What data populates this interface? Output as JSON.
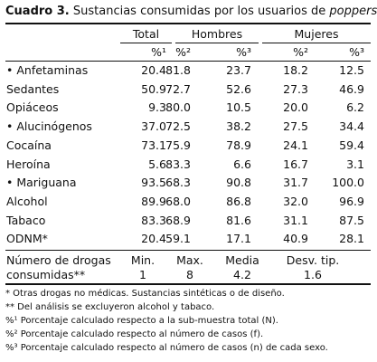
{
  "title": {
    "label": "Cuadro 3.",
    "text": "Sustancias consumidas por los usuarios de",
    "emphasis": "poppers"
  },
  "table": {
    "groups": [
      "Total",
      "Hombres",
      "Mujeres"
    ],
    "subheaders": [
      "%¹",
      "%²",
      "%³",
      "%²",
      "%³"
    ],
    "rows": [
      {
        "label": "• Anfetaminas",
        "values": [
          "20.4",
          "81.8",
          "23.7",
          "18.2",
          "12.5"
        ]
      },
      {
        "label": "Sedantes",
        "values": [
          "50.9",
          "72.7",
          "52.6",
          "27.3",
          "46.9"
        ]
      },
      {
        "label": "Opiáceos",
        "values": [
          "9.3",
          "80.0",
          "10.5",
          "20.0",
          "6.2"
        ]
      },
      {
        "label": "• Alucinógenos",
        "values": [
          "37.0",
          "72.5",
          "38.2",
          "27.5",
          "34.4"
        ]
      },
      {
        "label": "Cocaína",
        "values": [
          "73.1",
          "75.9",
          "78.9",
          "24.1",
          "59.4"
        ]
      },
      {
        "label": "Heroína",
        "values": [
          "5.6",
          "83.3",
          "6.6",
          "16.7",
          "3.1"
        ]
      },
      {
        "label": "• Mariguana",
        "values": [
          "93.5",
          "68.3",
          "90.8",
          "31.7",
          "100.0"
        ]
      },
      {
        "label": "Alcohol",
        "values": [
          "89.9",
          "68.0",
          "86.8",
          "32.0",
          "96.9"
        ]
      },
      {
        "label": "Tabaco",
        "values": [
          "83.3",
          "68.9",
          "81.6",
          "31.1",
          "87.5"
        ]
      },
      {
        "label": "ODNM*",
        "values": [
          "20.4",
          "59.1",
          "17.1",
          "40.9",
          "28.1"
        ]
      }
    ],
    "summary": {
      "label": "Número de drogas consumidas**",
      "stats": [
        {
          "name": "Min.",
          "value": "1"
        },
        {
          "name": "Max.",
          "value": "8"
        },
        {
          "name": "Media",
          "value": "4.2"
        },
        {
          "name": "Desv. tip.",
          "value": "1.6"
        }
      ]
    }
  },
  "footnotes": [
    "* Otras drogas no médicas. Sustancias sintéticas o de diseño.",
    "** Del análisis se excluyeron alcohol y tabaco.",
    "%¹ Porcentaje calculado respecto a la sub-muestra total (N).",
    "%² Porcentaje calculado respecto al número de casos (f).",
    "%³ Porcentaje calculado respecto al número de casos (n) de cada sexo."
  ]
}
